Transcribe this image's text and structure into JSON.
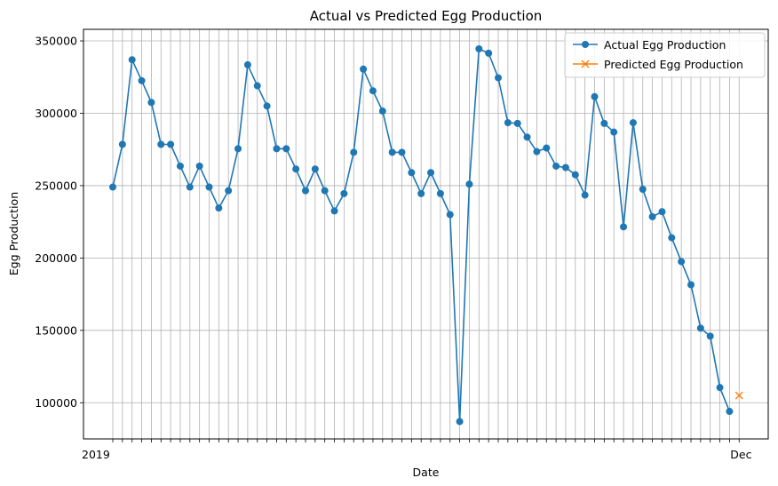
{
  "chart_data": {
    "type": "line",
    "title": "Actual vs Predicted Egg Production",
    "xlabel": "Date",
    "ylabel": "Egg Production",
    "ylim": [
      75000,
      358000
    ],
    "yticks": [
      100000,
      150000,
      200000,
      250000,
      300000,
      350000
    ],
    "ytick_labels": [
      "100000",
      "150000",
      "200000",
      "250000",
      "300000",
      "350000"
    ],
    "x_tick_labels_note": "",
    "grid": true,
    "legend_placement": "top-right",
    "colors": {
      "actual": "#1f77b4",
      "predicted": "#ff7f0e"
    },
    "x_first_label": "2019",
    "x_last_label": "Dec",
    "series": [
      {
        "name": "Actual Egg Production",
        "marker": "circle",
        "values": [
          249000,
          278500,
          337000,
          322500,
          307500,
          278500,
          278500,
          263500,
          249000,
          263500,
          249000,
          234500,
          246500,
          275500,
          333500,
          319000,
          305000,
          275500,
          275500,
          261500,
          246500,
          261500,
          246500,
          232500,
          244500,
          273000,
          330500,
          315500,
          301500,
          273000,
          273000,
          259000,
          244500,
          259000,
          244500,
          230000,
          87000,
          251000,
          344500,
          341500,
          324500,
          293500,
          293000,
          283500,
          273500,
          276000,
          263500,
          262500,
          257500,
          243500,
          311500,
          293000,
          287000,
          221500,
          293500,
          247500,
          228500,
          232000,
          214000,
          197500,
          181500,
          151500,
          146000,
          110500,
          94000
        ]
      },
      {
        "name": "Predicted Egg Production",
        "marker": "x",
        "start_index": 65,
        "values": [
          105000
        ]
      }
    ]
  }
}
